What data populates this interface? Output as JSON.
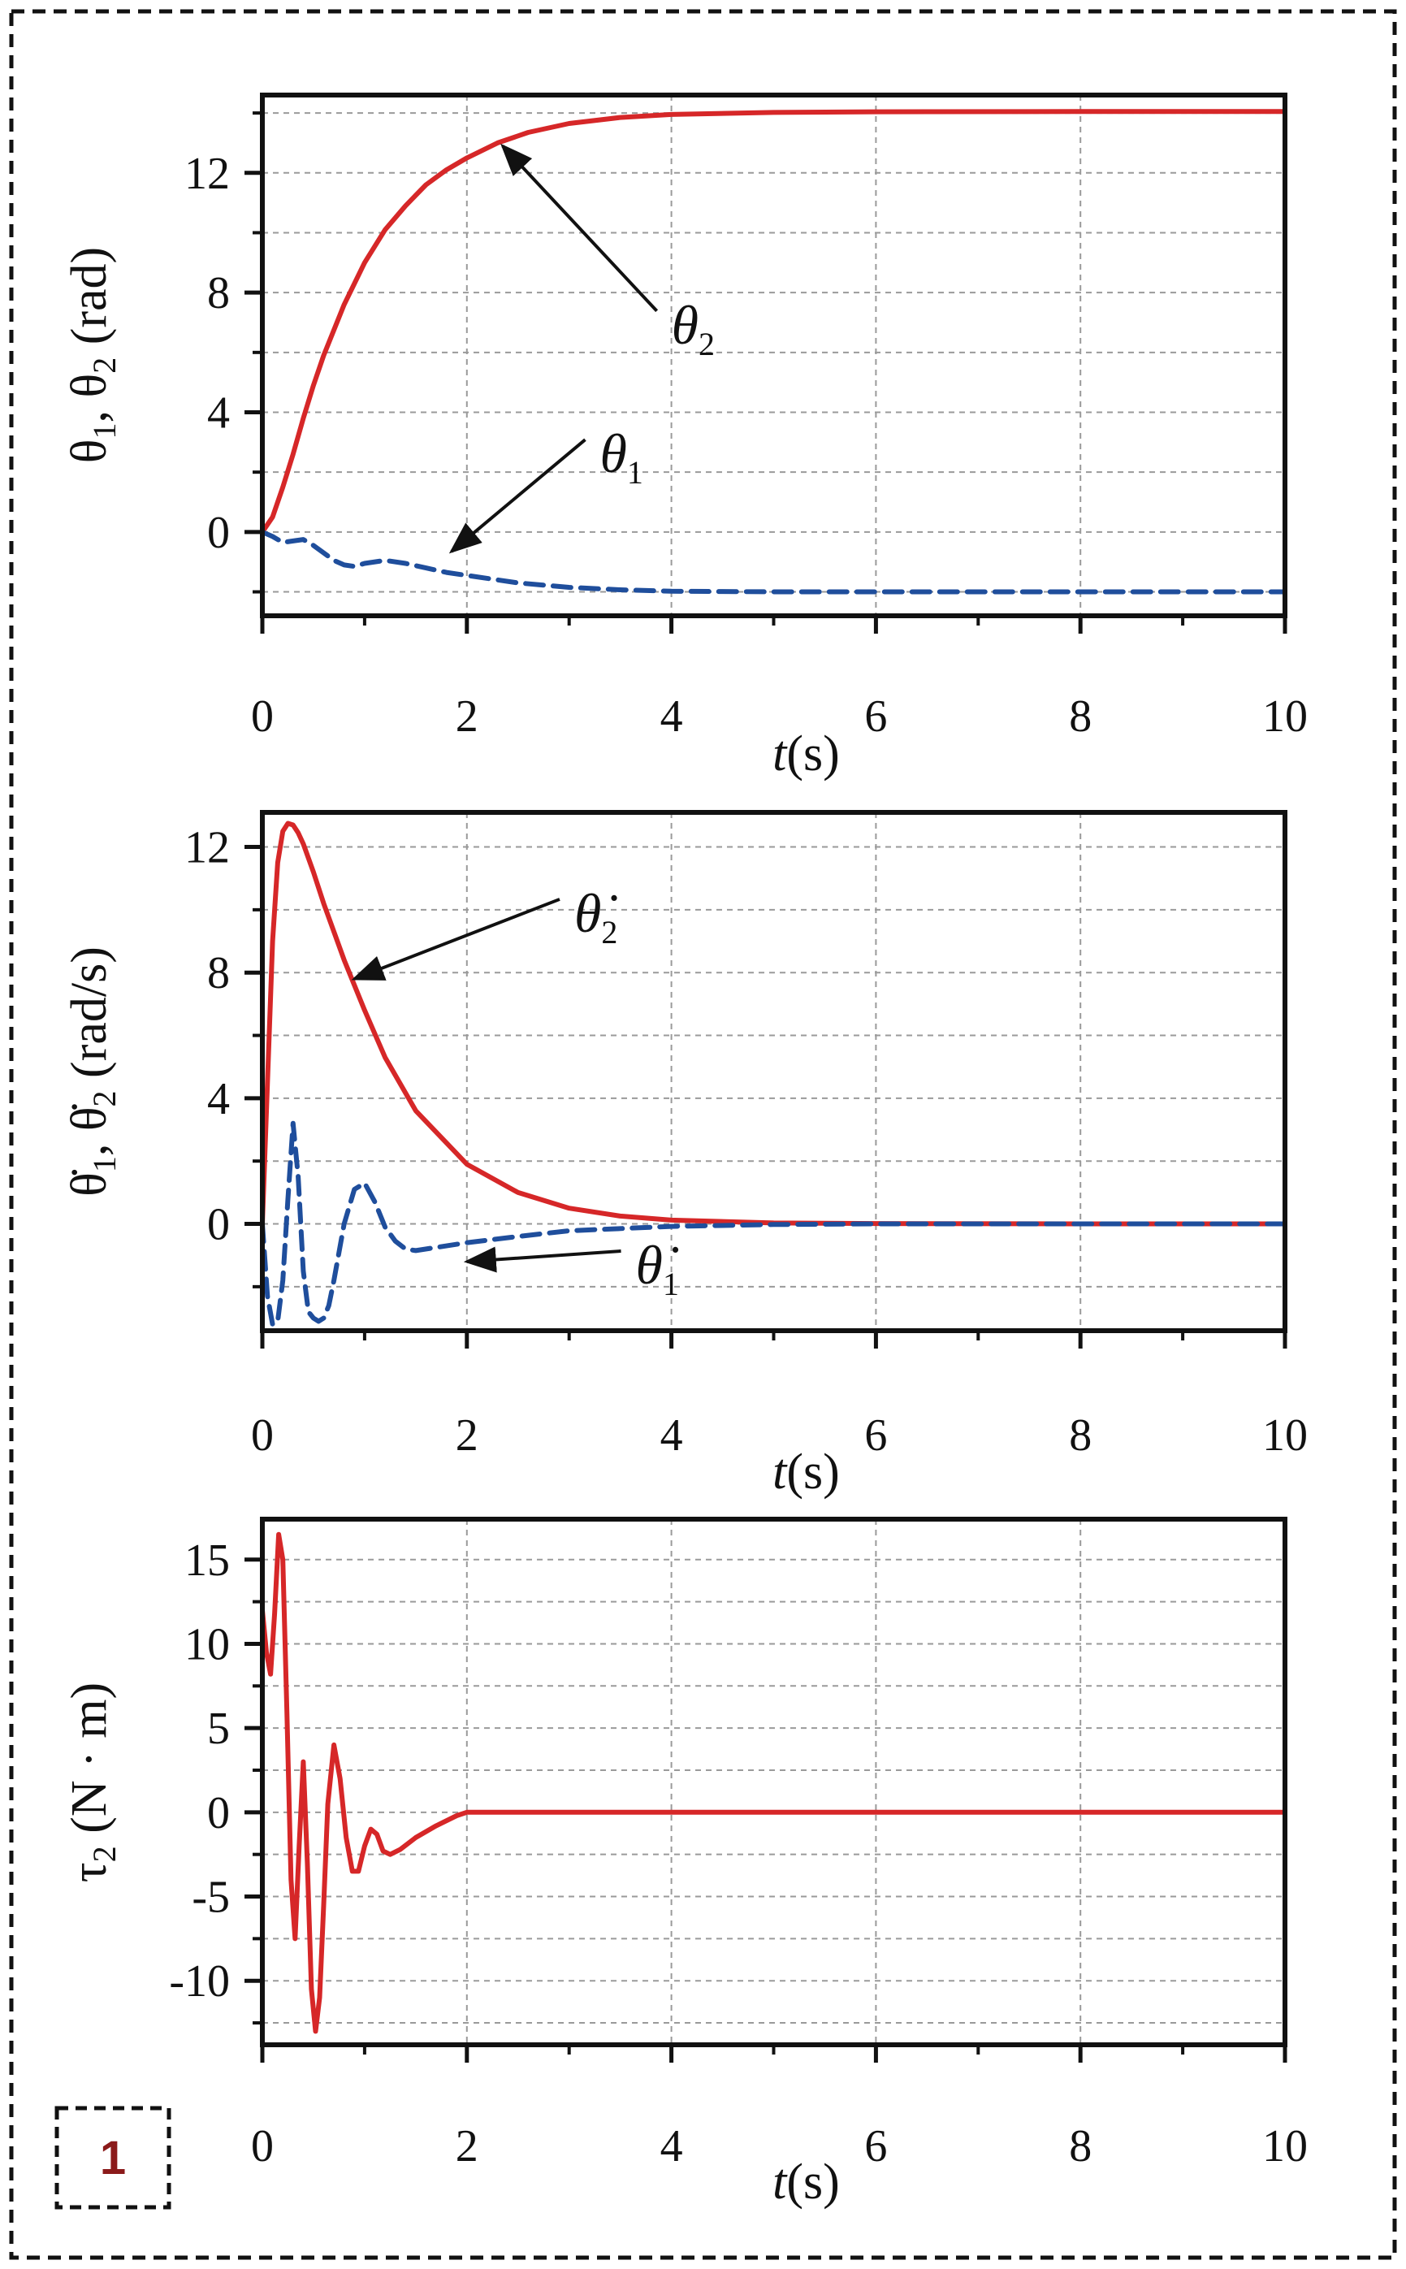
{
  "figure": {
    "badge": "1",
    "colors": {
      "red": "#d62728",
      "blue": "#1f4e9c",
      "frame": "#111111",
      "grid": "#9a9a9a",
      "badge": "#8b1a1a"
    }
  },
  "chart_data": [
    {
      "type": "line",
      "id": "angle",
      "xlabel": "t(s)",
      "ylabel": "θ1, θ2 (rad)",
      "xlim": [
        0,
        10
      ],
      "ylim": [
        -2.8,
        14.6
      ],
      "xticks": [
        0,
        2,
        4,
        6,
        8,
        10
      ],
      "xtick_labels": [
        "0",
        "2",
        "4",
        "6",
        "8",
        "10"
      ],
      "yticks": [
        0,
        4,
        8,
        12
      ],
      "ytick_labels": [
        "0",
        "4",
        "8",
        "12"
      ],
      "grid": true,
      "series": [
        {
          "name": "θ2",
          "color": "#d62728",
          "style": "solid",
          "x": [
            0,
            0.1,
            0.2,
            0.3,
            0.4,
            0.5,
            0.6,
            0.8,
            1.0,
            1.2,
            1.4,
            1.6,
            1.8,
            2.0,
            2.3,
            2.6,
            3.0,
            3.5,
            4.0,
            5.0,
            6.0,
            8.0,
            10.0
          ],
          "values": [
            0,
            0.5,
            1.5,
            2.6,
            3.8,
            4.9,
            5.9,
            7.6,
            9.0,
            10.1,
            10.9,
            11.6,
            12.1,
            12.5,
            13.0,
            13.35,
            13.65,
            13.85,
            13.95,
            14.02,
            14.04,
            14.05,
            14.05
          ]
        },
        {
          "name": "θ1",
          "color": "#1f4e9c",
          "style": "dashed",
          "x": [
            0,
            0.1,
            0.2,
            0.3,
            0.4,
            0.5,
            0.6,
            0.7,
            0.8,
            0.9,
            1.0,
            1.2,
            1.4,
            1.6,
            1.8,
            2.0,
            2.5,
            3.0,
            3.5,
            4.0,
            5.0,
            6.0,
            8.0,
            10.0
          ],
          "values": [
            0,
            -0.15,
            -0.35,
            -0.3,
            -0.25,
            -0.45,
            -0.7,
            -0.95,
            -1.1,
            -1.15,
            -1.05,
            -0.95,
            -1.05,
            -1.2,
            -1.35,
            -1.45,
            -1.7,
            -1.85,
            -1.93,
            -1.98,
            -2.0,
            -2.0,
            -2.0,
            -2.0
          ]
        }
      ],
      "annotations": [
        {
          "symbol": "θ",
          "sub": "2",
          "dot": false,
          "target_x": 2.35,
          "target_y": 12.9,
          "text_x": 4.0,
          "text_y": 6.3
        },
        {
          "symbol": "θ",
          "sub": "1",
          "dot": false,
          "target_x": 1.85,
          "target_y": -0.65,
          "text_x": 3.3,
          "text_y": 2.0
        }
      ]
    },
    {
      "type": "line",
      "id": "velocity",
      "xlabel": "t(s)",
      "ylabel": "θ̇1, θ̇2 (rad/s)",
      "xlim": [
        0,
        10
      ],
      "ylim": [
        -3.4,
        13.1
      ],
      "xticks": [
        0,
        2,
        4,
        6,
        8,
        10
      ],
      "xtick_labels": [
        "0",
        "2",
        "4",
        "6",
        "8",
        "10"
      ],
      "yticks": [
        0,
        4,
        8,
        12
      ],
      "ytick_labels": [
        "0",
        "4",
        "8",
        "12"
      ],
      "grid": true,
      "series": [
        {
          "name": "θ̇2",
          "color": "#d62728",
          "style": "solid",
          "x": [
            0,
            0.05,
            0.1,
            0.15,
            0.2,
            0.25,
            0.3,
            0.35,
            0.4,
            0.5,
            0.6,
            0.8,
            1.0,
            1.2,
            1.5,
            2.0,
            2.5,
            3.0,
            3.5,
            4.0,
            5.0,
            6.0,
            8.0,
            10.0
          ],
          "values": [
            0,
            4.5,
            9.0,
            11.5,
            12.5,
            12.75,
            12.7,
            12.45,
            12.1,
            11.2,
            10.2,
            8.4,
            6.8,
            5.3,
            3.6,
            1.9,
            1.0,
            0.5,
            0.25,
            0.12,
            0.03,
            0.01,
            0,
            0
          ]
        },
        {
          "name": "θ̇1",
          "color": "#1f4e9c",
          "style": "dashed",
          "x": [
            0,
            0.05,
            0.1,
            0.15,
            0.2,
            0.25,
            0.3,
            0.35,
            0.4,
            0.45,
            0.5,
            0.55,
            0.6,
            0.65,
            0.7,
            0.8,
            0.9,
            1.0,
            1.1,
            1.2,
            1.3,
            1.4,
            1.5,
            1.7,
            2.0,
            2.5,
            3.0,
            4.0,
            5.0,
            6.0,
            10.0
          ],
          "values": [
            0,
            -2.3,
            -3.2,
            -3.1,
            -1.8,
            0.8,
            3.2,
            1.5,
            -1.5,
            -2.8,
            -3.0,
            -3.1,
            -3.0,
            -2.6,
            -1.8,
            0.0,
            1.1,
            1.3,
            0.7,
            -0.1,
            -0.55,
            -0.8,
            -0.85,
            -0.75,
            -0.6,
            -0.4,
            -0.22,
            -0.08,
            -0.02,
            0,
            0
          ]
        }
      ],
      "annotations": [
        {
          "symbol": "θ",
          "sub": "2",
          "dot": true,
          "target_x": 0.9,
          "target_y": 7.8,
          "text_x": 3.05,
          "text_y": 9.3
        },
        {
          "symbol": "θ",
          "sub": "1",
          "dot": true,
          "target_x": 2.0,
          "target_y": -1.2,
          "text_x": 3.65,
          "text_y": -1.9
        }
      ]
    },
    {
      "type": "line",
      "id": "torque",
      "xlabel": "t(s)",
      "ylabel": "τ2 (N · m)",
      "xlim": [
        0,
        10
      ],
      "ylim": [
        -13.8,
        17.4
      ],
      "xticks": [
        0,
        2,
        4,
        6,
        8,
        10
      ],
      "xtick_labels": [
        "0",
        "2",
        "4",
        "6",
        "8",
        "10"
      ],
      "yticks": [
        -10,
        -5,
        0,
        5,
        10,
        15
      ],
      "ytick_labels": [
        "-10",
        "-5",
        "0",
        "5",
        "10",
        "15"
      ],
      "grid": true,
      "series": [
        {
          "name": "τ2",
          "color": "#d62728",
          "style": "solid",
          "x": [
            0,
            0.04,
            0.08,
            0.12,
            0.16,
            0.2,
            0.24,
            0.28,
            0.32,
            0.36,
            0.4,
            0.44,
            0.48,
            0.52,
            0.56,
            0.6,
            0.64,
            0.7,
            0.76,
            0.82,
            0.88,
            0.94,
            1.0,
            1.06,
            1.12,
            1.18,
            1.25,
            1.35,
            1.5,
            1.7,
            1.9,
            2.0,
            2.2,
            3.0,
            5.0,
            10.0
          ],
          "values": [
            12.0,
            9.5,
            8.2,
            11.8,
            16.5,
            15.0,
            6.0,
            -4.0,
            -7.5,
            -2.0,
            3.0,
            -3.0,
            -10.5,
            -13.0,
            -11.0,
            -5.5,
            0.5,
            4.0,
            2.0,
            -1.5,
            -3.5,
            -3.5,
            -2.0,
            -1.0,
            -1.3,
            -2.3,
            -2.5,
            -2.2,
            -1.5,
            -0.8,
            -0.2,
            0.0,
            0.0,
            0.0,
            0.0,
            0.0
          ]
        }
      ],
      "annotations": []
    }
  ]
}
